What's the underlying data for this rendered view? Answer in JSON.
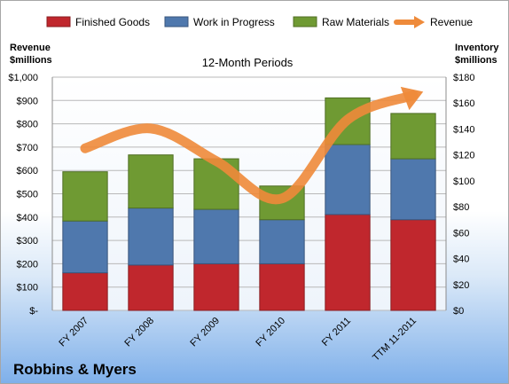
{
  "company": "Robbins & Myers",
  "chart_data": {
    "type": "bar",
    "stacked": true,
    "title": "12-Month Periods",
    "categories": [
      "FY 2007",
      "FY 2008",
      "FY 2009",
      "FY 2010",
      "FY 2011",
      "TTM 11-2011"
    ],
    "series": [
      {
        "name": "Finished Goods",
        "axis": "right",
        "color": "#c0272d",
        "values": [
          29,
          35,
          36,
          36,
          74,
          70
        ]
      },
      {
        "name": "Work in Progress",
        "axis": "right",
        "color": "#4f78ad",
        "values": [
          40,
          44,
          42,
          34,
          54,
          47
        ]
      },
      {
        "name": "Raw Materials",
        "axis": "right",
        "color": "#6f9a33",
        "values": [
          38,
          41,
          39,
          26,
          36,
          35
        ]
      },
      {
        "name": "Revenue",
        "axis": "left",
        "type": "line",
        "color": "#ee8a3a",
        "values": [
          695,
          780,
          640,
          480,
          818,
          922
        ]
      }
    ],
    "left_axis": {
      "label_line1": "Revenue",
      "label_line2": "$millions",
      "ylim": [
        0,
        1000
      ],
      "ticks": [
        "$-",
        "$100",
        "$200",
        "$300",
        "$400",
        "$500",
        "$600",
        "$700",
        "$800",
        "$900",
        "$1,000"
      ]
    },
    "right_axis": {
      "label_line1": "Inventory",
      "label_line2": "$millions",
      "ylim": [
        0,
        180
      ],
      "ticks": [
        "$0",
        "$20",
        "$40",
        "$60",
        "$80",
        "$100",
        "$120",
        "$140",
        "$160",
        "$180"
      ]
    },
    "grid": true,
    "legend_position": "top"
  }
}
